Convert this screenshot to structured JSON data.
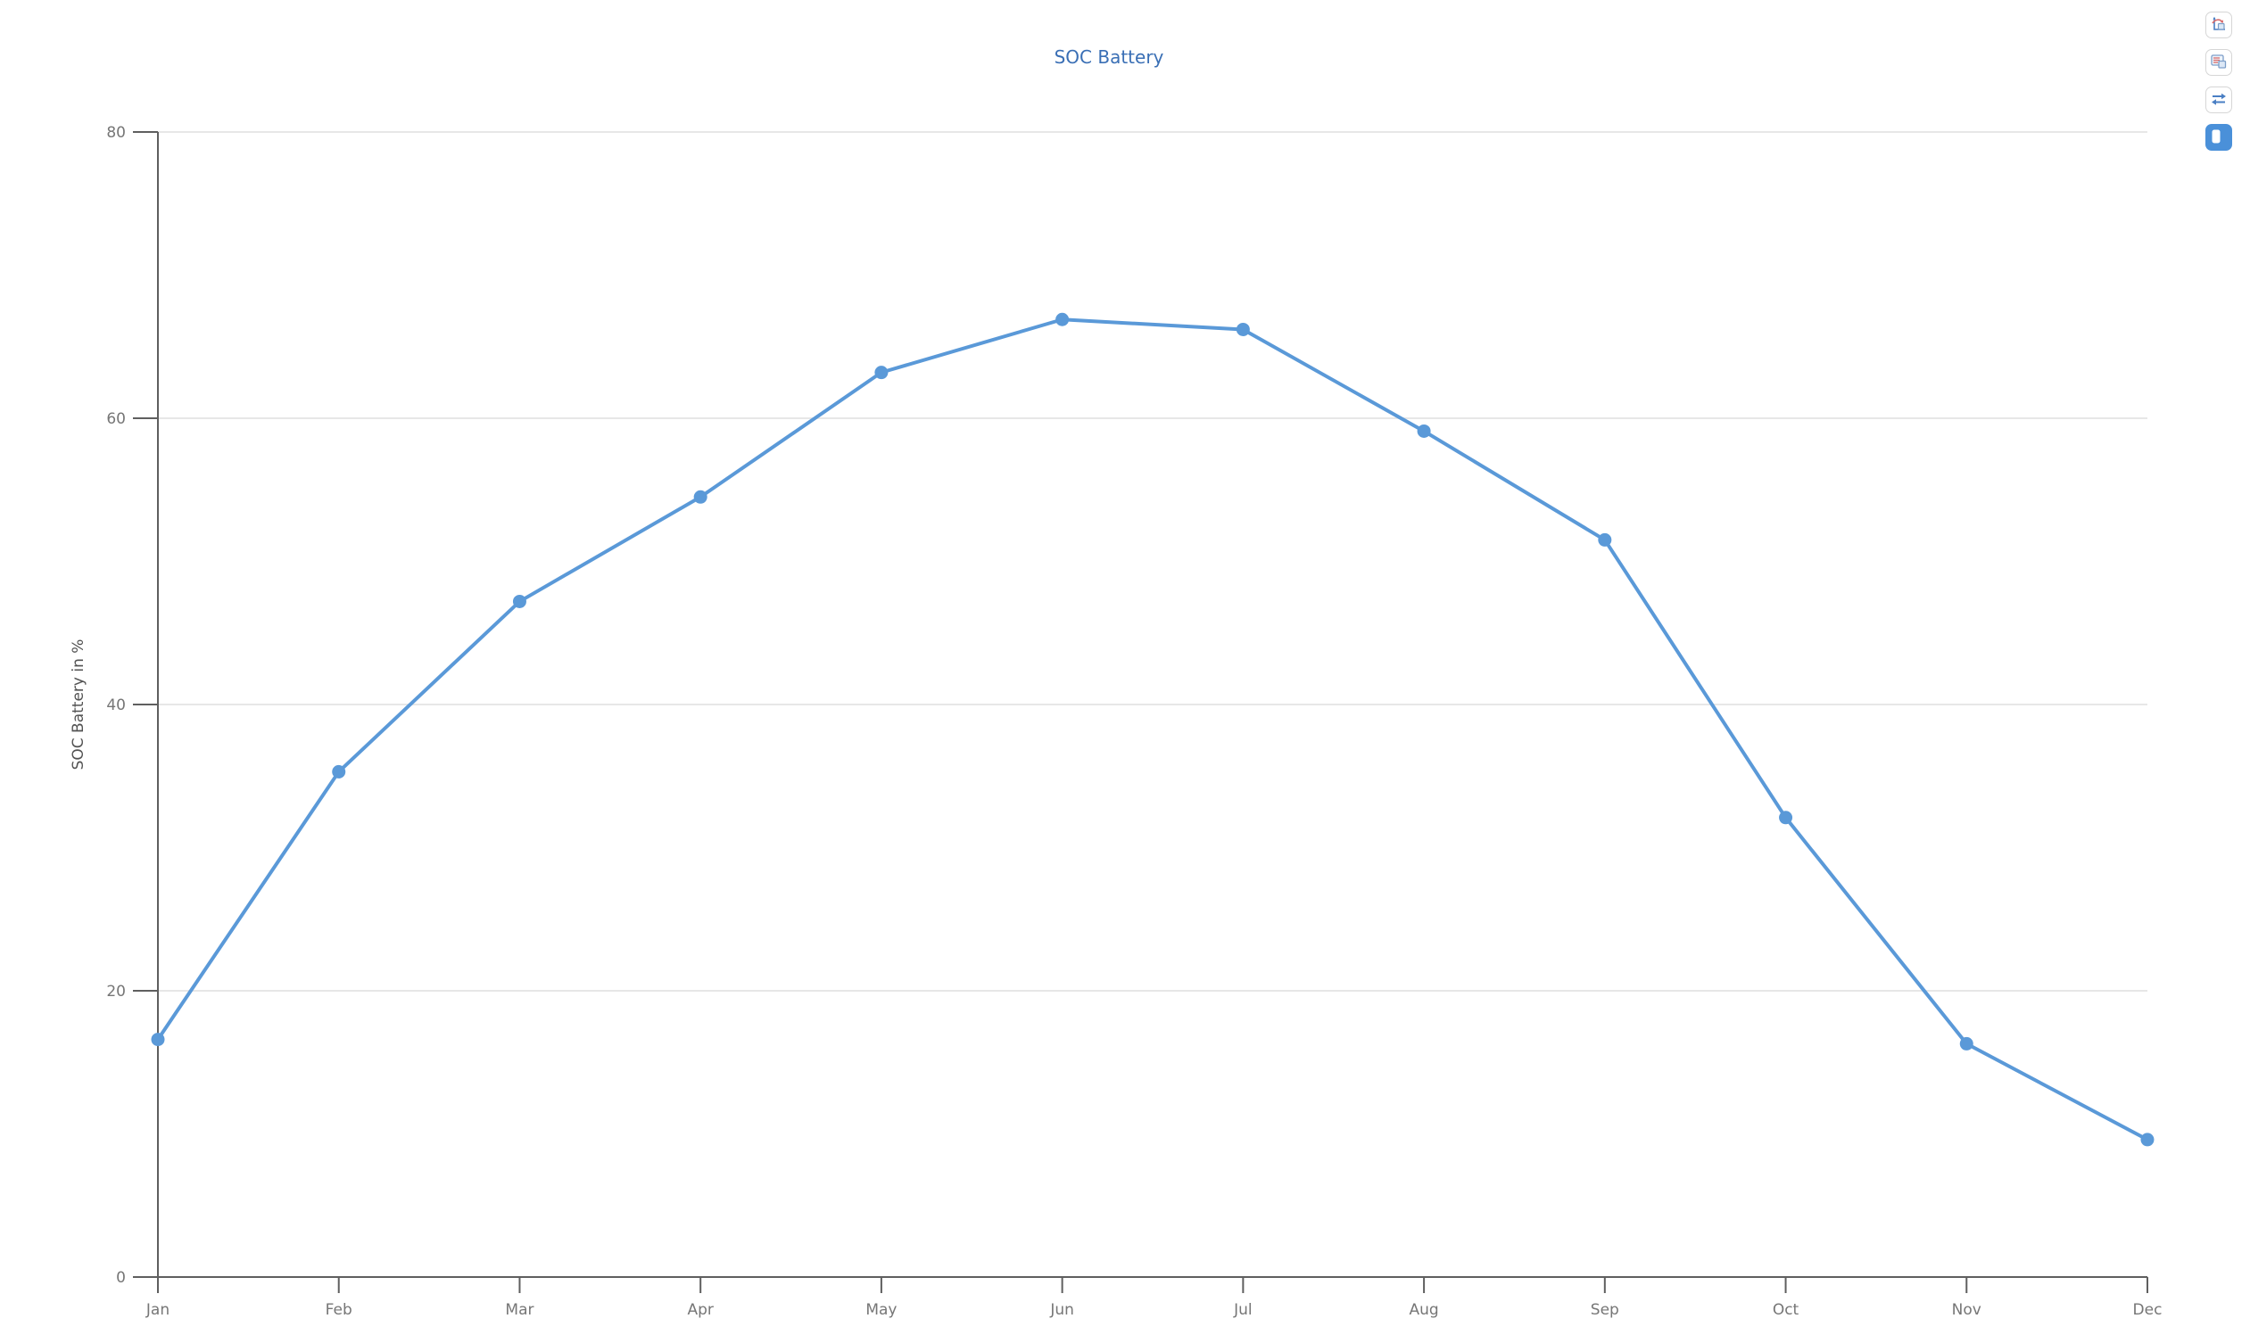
{
  "header": {
    "title": "SOC Battery"
  },
  "toolbar": {
    "icons": [
      "axes-chart-icon",
      "data-grid-icon",
      "swap-arrows-icon",
      "panel-toggle-icon"
    ]
  },
  "colors": {
    "line": "#5a99d8",
    "title": "#3a6fb5",
    "axis": "#5f5f5f",
    "grid": "#e7e7e7",
    "tick_label": "#767676",
    "toolbar_active": "#4a90d9"
  },
  "chart_data": {
    "type": "line",
    "title": "SOC Battery",
    "xlabel": "",
    "ylabel": "SOC Battery in %",
    "categories": [
      "Jan",
      "Feb",
      "Mar",
      "Apr",
      "May",
      "Jun",
      "Jul",
      "Aug",
      "Sep",
      "Oct",
      "Nov",
      "Dec"
    ],
    "values": [
      16.6,
      35.3,
      47.2,
      54.5,
      63.2,
      66.9,
      66.2,
      59.1,
      51.5,
      32.1,
      16.3,
      9.6
    ],
    "ylim": [
      0,
      80
    ],
    "yticks": [
      0,
      20,
      40,
      60,
      80
    ],
    "grid": true,
    "legend": "none",
    "marker": "circle"
  }
}
